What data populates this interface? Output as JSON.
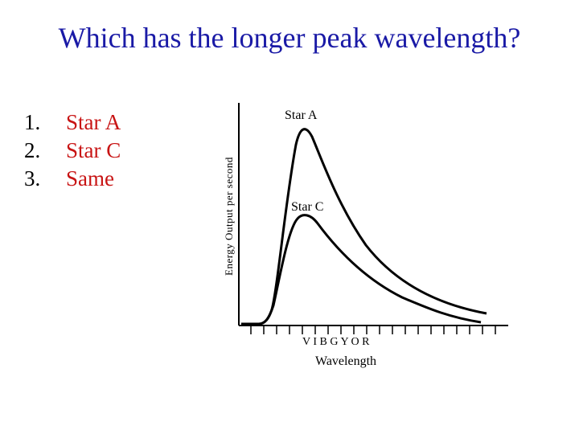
{
  "slide": {
    "title": "Which has the longer peak wavelength?",
    "colors": {
      "title": "#1a1aa6",
      "option": "#c81414",
      "axis": "#000000"
    }
  },
  "options": [
    {
      "number": "1.",
      "label": "Star A"
    },
    {
      "number": "2.",
      "label": "Star C"
    },
    {
      "number": "3.",
      "label": "Same"
    }
  ],
  "diagram": {
    "ylabel": "Energy Output per second",
    "xlabel": "Wavelength",
    "color_bands": "V I B G Y O R",
    "curves": [
      {
        "name": "Star A",
        "peak_level": 1.0
      },
      {
        "name": "Star C",
        "peak_level": 0.55
      }
    ]
  }
}
